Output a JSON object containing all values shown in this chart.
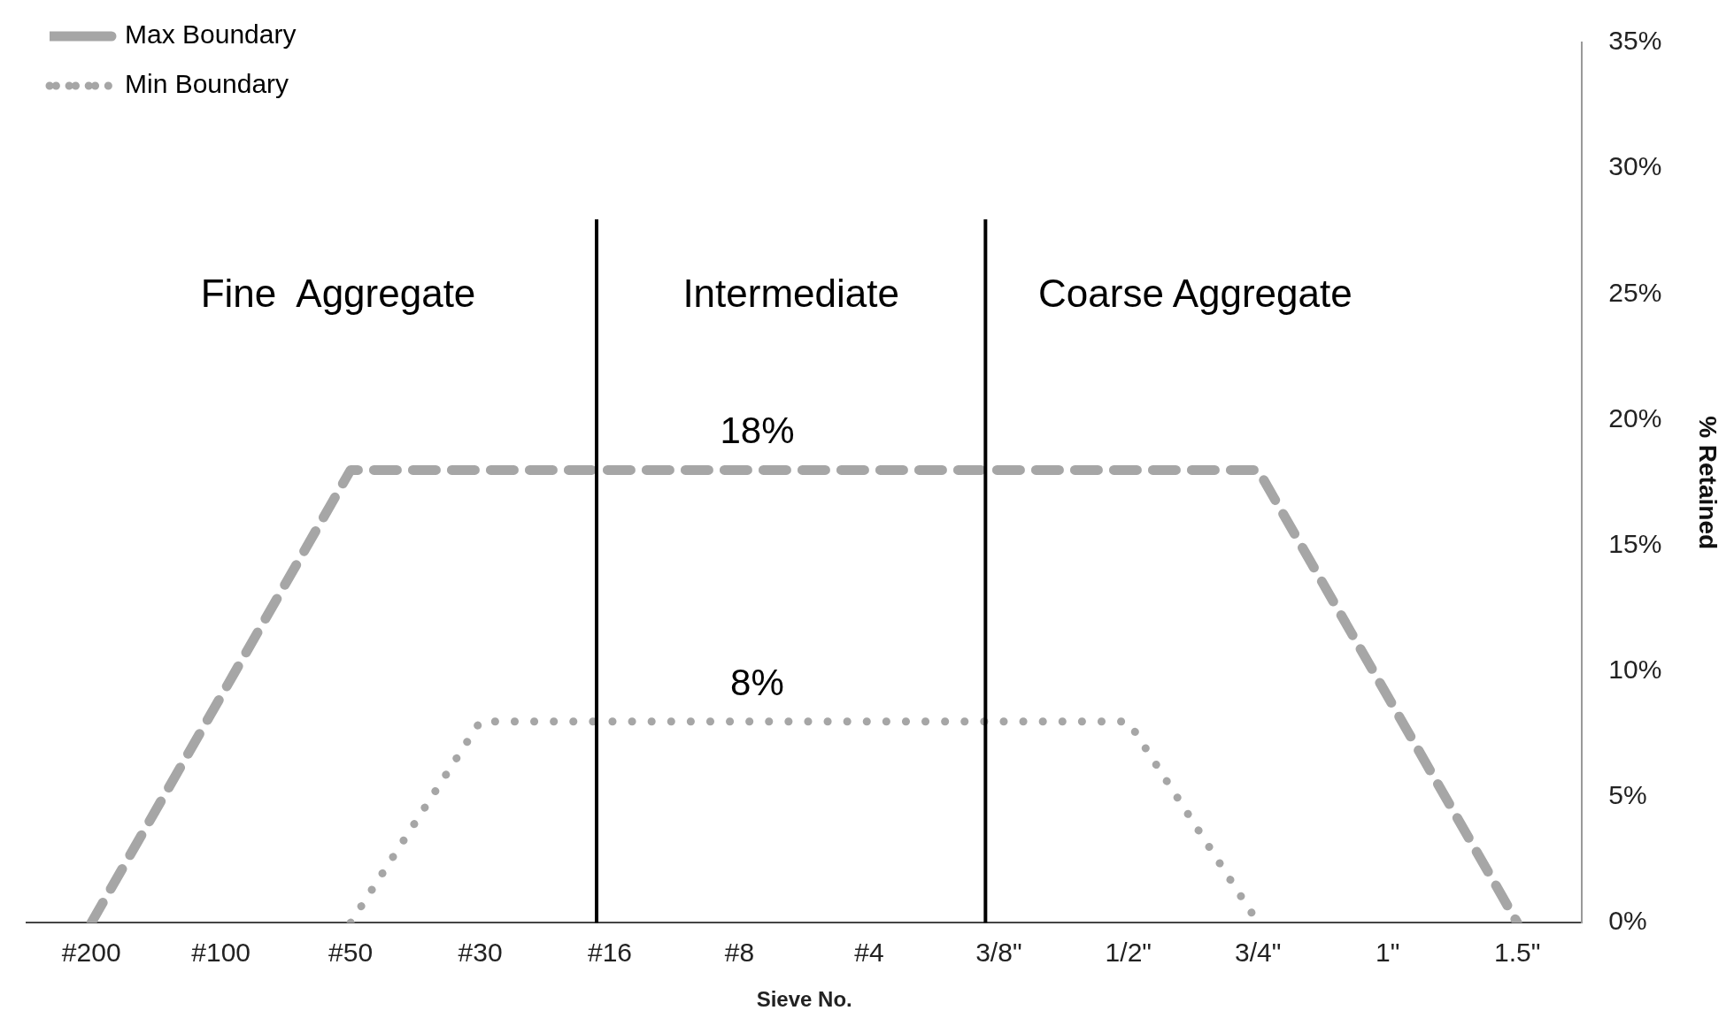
{
  "chart_data": {
    "type": "line",
    "xlabel": "Sieve No.",
    "ylabel": "% Retained",
    "categories": [
      "#200",
      "#100",
      "#50",
      "#30",
      "#16",
      "#8",
      "#4",
      "3/8\"",
      "1/2\"",
      "3/4\"",
      "1\"",
      "1.5\""
    ],
    "series": [
      {
        "name": "Max Boundary",
        "color": "#a6a6a6",
        "line_style": "dashed",
        "values": [
          0,
          9,
          18,
          18,
          18,
          18,
          18,
          18,
          18,
          18,
          9,
          0
        ]
      },
      {
        "name": "Min Boundary",
        "color": "#a6a6a6",
        "line_style": "dotted",
        "values": [
          null,
          null,
          0,
          8,
          8,
          8,
          8,
          8,
          8,
          0,
          null,
          null
        ]
      }
    ],
    "ylim": [
      0,
      35
    ],
    "yticks": [
      {
        "value": 0,
        "label": "0%"
      },
      {
        "value": 5,
        "label": "5%"
      },
      {
        "value": 10,
        "label": "10%"
      },
      {
        "value": 15,
        "label": "15%"
      },
      {
        "value": 20,
        "label": "20%"
      },
      {
        "value": 25,
        "label": "25%"
      },
      {
        "value": 30,
        "label": "30%"
      },
      {
        "value": 35,
        "label": "35%"
      }
    ],
    "grid": false,
    "legend": "top left",
    "marker": "none",
    "ref_lines": [
      {
        "axis": "x",
        "value": "#16",
        "color": "#000000",
        "line_style": "solid"
      },
      {
        "axis": "x",
        "value": "3/8\"",
        "color": "#000000",
        "line_style": "solid"
      }
    ],
    "annotations": [
      "Fine  Aggregate",
      "Intermediate",
      "Coarse Aggregate",
      {
        "text": "18%",
        "x": "#8",
        "y": 18
      },
      {
        "text": "8%",
        "x": "#8",
        "y": 8
      }
    ]
  }
}
